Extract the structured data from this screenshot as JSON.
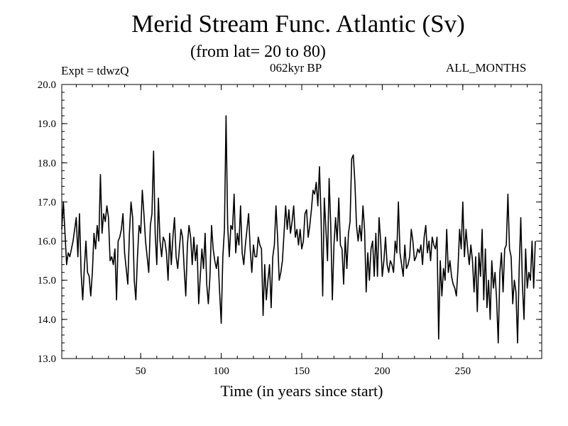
{
  "header": {
    "title": "Merid Stream Func. Atlantic (Sv)",
    "subtitle": "(from lat= 20 to 80)",
    "expt": "Expt = tdwzQ",
    "period": "062kyr BP",
    "months": "ALL_MONTHS"
  },
  "chart_data": {
    "type": "line",
    "title": "Merid Stream Func. Atlantic (Sv)",
    "subtitle": "(from lat= 20 to 80)",
    "xlabel": "Time (in years since start)",
    "ylabel": "",
    "xlim": [
      1,
      299
    ],
    "ylim": [
      13.0,
      20.0
    ],
    "x_ticks": [
      50,
      100,
      150,
      200,
      250
    ],
    "y_ticks": [
      13.0,
      14.0,
      15.0,
      16.0,
      17.0,
      18.0,
      19.0,
      20.0
    ],
    "x_tick_labels": [
      "50",
      "100",
      "150",
      "200",
      "250"
    ],
    "y_tick_labels": [
      "13.0",
      "14.0",
      "15.0",
      "16.0",
      "17.0",
      "18.0",
      "19.0",
      "20.0"
    ],
    "grid": false,
    "line_color": "#000000",
    "series": [
      {
        "x_start": 1,
        "x_step": 1,
        "values": [
          16.3,
          17.0,
          16.2,
          15.4,
          15.7,
          15.6,
          15.8,
          16.0,
          16.3,
          16.6,
          15.6,
          16.7,
          15.2,
          14.5,
          15.3,
          16.0,
          15.2,
          15.1,
          14.6,
          15.2,
          16.2,
          15.8,
          16.4,
          16.0,
          17.7,
          16.2,
          16.7,
          16.5,
          16.9,
          16.6,
          15.5,
          15.6,
          15.4,
          15.8,
          14.5,
          16.0,
          16.1,
          16.3,
          16.7,
          15.7,
          15.3,
          14.9,
          16.2,
          17.0,
          16.6,
          15.0,
          14.5,
          15.6,
          16.4,
          16.2,
          17.3,
          16.7,
          16.0,
          15.6,
          15.2,
          16.4,
          16.7,
          18.3,
          16.2,
          15.4,
          17.1,
          16.0,
          15.6,
          16.1,
          16.0,
          15.7,
          15.0,
          16.2,
          15.4,
          16.1,
          16.6,
          15.6,
          15.3,
          15.8,
          16.3,
          16.1,
          15.3,
          14.6,
          15.9,
          16.4,
          16.1,
          15.4,
          16.1,
          15.5,
          15.9,
          14.4,
          15.1,
          15.8,
          15.3,
          16.2,
          14.9,
          14.4,
          15.1,
          16.4,
          15.8,
          15.5,
          15.3,
          15.6,
          14.7,
          13.9,
          15.6,
          16.3,
          19.2,
          16.4,
          15.6,
          16.4,
          16.3,
          17.2,
          15.7,
          16.2,
          15.9,
          16.9,
          15.7,
          15.4,
          15.9,
          16.3,
          16.7,
          15.8,
          15.2,
          15.9,
          15.6,
          15.6,
          16.1,
          15.9,
          15.8,
          14.1,
          15.4,
          14.5,
          15.0,
          15.4,
          14.3,
          15.6,
          15.9,
          16.9,
          16.1,
          15.0,
          15.2,
          15.5,
          16.2,
          16.9,
          16.3,
          16.8,
          16.2,
          16.5,
          16.9,
          16.1,
          16.3,
          15.9,
          16.3,
          15.8,
          16.0,
          16.7,
          16.8,
          16.1,
          16.4,
          16.8,
          17.3,
          17.2,
          17.5,
          16.9,
          17.9,
          16.6,
          14.6,
          17.1,
          16.3,
          15.5,
          17.6,
          16.4,
          14.5,
          15.9,
          16.6,
          16.0,
          17.1,
          15.9,
          15.8,
          14.9,
          16.1,
          15.3,
          16.2,
          16.5,
          18.1,
          18.2,
          17.5,
          16.4,
          16.0,
          16.4,
          16.0,
          16.9,
          16.3,
          14.7,
          15.7,
          15.0,
          15.8,
          16.0,
          15.1,
          16.2,
          15.1,
          16.6,
          16.0,
          15.1,
          15.5,
          16.1,
          15.4,
          15.2,
          15.5,
          15.4,
          15.2,
          16.0,
          15.7,
          17.0,
          15.7,
          15.4,
          15.1,
          15.9,
          15.3,
          15.4,
          15.6,
          16.3,
          16.0,
          15.5,
          15.6,
          15.8,
          15.7,
          15.9,
          15.4,
          16.1,
          16.4,
          15.7,
          16.0,
          15.5,
          16.1,
          15.9,
          15.8,
          16.1,
          13.5,
          15.5,
          14.6,
          15.3,
          15.0,
          16.3,
          15.2,
          15.5,
          15.1,
          14.9,
          14.8,
          14.6,
          15.3,
          16.3,
          15.8,
          17.0,
          15.6,
          16.3,
          15.8,
          15.4,
          15.9,
          15.5,
          14.7,
          15.6,
          14.2,
          15.7,
          15.1,
          16.3,
          14.5,
          15.8,
          14.3,
          15.0,
          14.0,
          15.5,
          14.8,
          15.2,
          14.5,
          13.4,
          15.2,
          15.7,
          14.7,
          15.8,
          15.9,
          17.2,
          15.8,
          15.6,
          14.4,
          15.0,
          14.7,
          13.4,
          15.3,
          16.6,
          14.9,
          14.0,
          15.8,
          14.8,
          15.2,
          15.0,
          16.0,
          14.8,
          16.0
        ]
      }
    ]
  }
}
